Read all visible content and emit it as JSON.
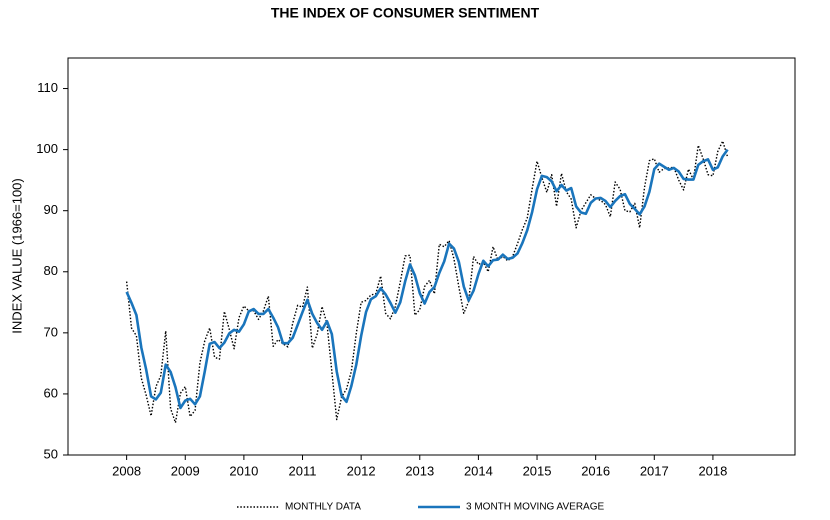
{
  "chart_data": {
    "type": "line",
    "title": "THE INDEX OF CONSUMER SENTIMENT",
    "y_label": "INDEX VALUE (1966=100)",
    "x": [
      2008,
      2008.083,
      2008.167,
      2008.25,
      2008.333,
      2008.417,
      2008.5,
      2008.583,
      2008.667,
      2008.75,
      2008.833,
      2008.917,
      2009,
      2009.083,
      2009.167,
      2009.25,
      2009.333,
      2009.417,
      2009.5,
      2009.583,
      2009.667,
      2009.75,
      2009.833,
      2009.917,
      2010,
      2010.083,
      2010.167,
      2010.25,
      2010.333,
      2010.417,
      2010.5,
      2010.583,
      2010.667,
      2010.75,
      2010.833,
      2010.917,
      2011,
      2011.083,
      2011.167,
      2011.25,
      2011.333,
      2011.417,
      2011.5,
      2011.583,
      2011.667,
      2011.75,
      2011.833,
      2011.917,
      2012,
      2012.083,
      2012.167,
      2012.25,
      2012.333,
      2012.417,
      2012.5,
      2012.583,
      2012.667,
      2012.75,
      2012.833,
      2012.917,
      2013,
      2013.083,
      2013.167,
      2013.25,
      2013.333,
      2013.417,
      2013.5,
      2013.583,
      2013.667,
      2013.75,
      2013.833,
      2013.917,
      2014,
      2014.083,
      2014.167,
      2014.25,
      2014.333,
      2014.417,
      2014.5,
      2014.583,
      2014.667,
      2014.75,
      2014.833,
      2014.917,
      2015,
      2015.083,
      2015.167,
      2015.25,
      2015.333,
      2015.417,
      2015.5,
      2015.583,
      2015.667,
      2015.75,
      2015.833,
      2015.917,
      2016,
      2016.083,
      2016.167,
      2016.25,
      2016.333,
      2016.417,
      2016.5,
      2016.583,
      2016.667,
      2016.75,
      2016.833,
      2016.917,
      2017,
      2017.083,
      2017.167,
      2017.25,
      2017.333,
      2017.417,
      2017.5,
      2017.583,
      2017.667,
      2017.75,
      2017.833,
      2017.917,
      2018,
      2018.083,
      2018.167,
      2018.25
    ],
    "series": [
      {
        "name": "MONTHLY DATA",
        "color": "#000000",
        "style": "dotted",
        "values": [
          78.4,
          70.8,
          69.5,
          62.6,
          59.8,
          56.4,
          61.2,
          63.0,
          70.3,
          57.6,
          55.3,
          60.1,
          61.2,
          56.3,
          57.3,
          65.1,
          68.7,
          70.8,
          66.0,
          65.7,
          73.5,
          70.6,
          67.4,
          72.5,
          74.4,
          73.6,
          73.6,
          72.2,
          73.6,
          76.0,
          67.8,
          68.9,
          68.2,
          67.7,
          71.6,
          74.5,
          74.2,
          77.5,
          67.5,
          69.8,
          74.3,
          71.5,
          63.7,
          55.8,
          59.5,
          60.8,
          63.7,
          69.9,
          75.0,
          75.3,
          76.2,
          76.4,
          79.3,
          73.2,
          72.3,
          74.3,
          78.3,
          82.6,
          82.7,
          72.9,
          73.8,
          77.6,
          78.6,
          76.4,
          84.5,
          84.1,
          85.1,
          82.1,
          77.5,
          73.2,
          75.1,
          82.5,
          81.2,
          81.6,
          80.0,
          84.1,
          81.9,
          82.5,
          81.8,
          82.5,
          84.6,
          86.9,
          88.8,
          93.6,
          98.1,
          95.4,
          93.0,
          95.9,
          90.7,
          96.1,
          93.1,
          91.9,
          87.2,
          90.0,
          91.3,
          92.6,
          92.0,
          91.7,
          91.0,
          89.0,
          94.7,
          93.5,
          90.0,
          89.8,
          91.2,
          87.2,
          93.8,
          98.2,
          98.5,
          96.3,
          96.9,
          97.0,
          97.1,
          95.0,
          93.4,
          96.8,
          95.1,
          100.7,
          98.5,
          95.9,
          95.7,
          99.7,
          101.4,
          98.8
        ]
      },
      {
        "name": "3 MONTH MOVING AVERAGE",
        "color": "#1a75bc",
        "style": "solid",
        "values": [
          76.7,
          74.9,
          72.9,
          67.6,
          64.0,
          59.6,
          59.1,
          60.2,
          64.8,
          63.6,
          61.1,
          57.7,
          58.9,
          59.2,
          58.3,
          59.6,
          63.7,
          68.2,
          68.5,
          67.5,
          68.4,
          69.9,
          70.5,
          70.2,
          71.4,
          73.5,
          73.9,
          73.1,
          73.1,
          73.9,
          72.5,
          70.9,
          68.3,
          68.3,
          69.2,
          71.3,
          73.4,
          75.4,
          73.1,
          71.6,
          70.5,
          71.9,
          69.8,
          63.7,
          59.7,
          58.7,
          61.3,
          64.8,
          69.5,
          73.4,
          75.5,
          76.0,
          77.3,
          76.3,
          74.9,
          73.3,
          75.0,
          78.4,
          81.2,
          79.4,
          76.5,
          74.8,
          76.7,
          77.5,
          79.8,
          81.7,
          84.6,
          83.8,
          81.6,
          77.6,
          75.3,
          76.9,
          79.6,
          81.8,
          80.9,
          81.9,
          82.0,
          82.8,
          82.1,
          82.3,
          83.0,
          84.7,
          86.8,
          89.8,
          93.5,
          95.7,
          95.5,
          94.8,
          93.2,
          94.2,
          93.3,
          93.7,
          90.7,
          89.7,
          89.5,
          91.3,
          92.0,
          92.1,
          91.6,
          90.6,
          91.6,
          92.4,
          92.7,
          91.1,
          90.3,
          89.4,
          90.7,
          93.1,
          96.8,
          97.7,
          97.2,
          96.7,
          97.0,
          96.4,
          95.2,
          95.1,
          95.1,
          97.5,
          98.1,
          98.4,
          96.7,
          97.1,
          98.9,
          100.0
        ]
      }
    ],
    "xlim": [
      2007,
      2019.4
    ],
    "xticks": [
      2008,
      2009,
      2010,
      2011,
      2012,
      2013,
      2014,
      2015,
      2016,
      2017,
      2018
    ],
    "ylim": [
      50,
      115
    ],
    "yticks": [
      50,
      60,
      70,
      80,
      90,
      100,
      110
    ],
    "legend": "bottom"
  }
}
